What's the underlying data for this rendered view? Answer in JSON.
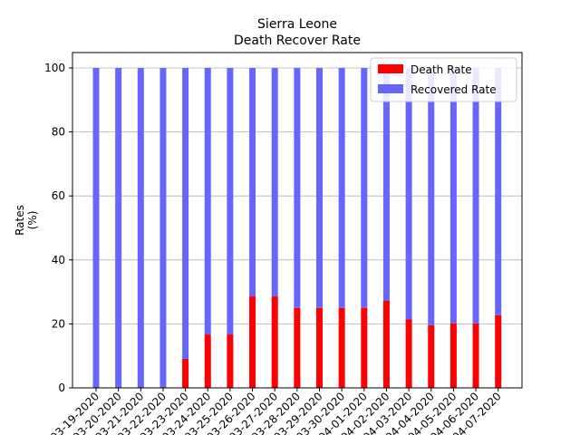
{
  "chart_data": {
    "type": "bar",
    "stacked": true,
    "title": "Sierra Leone",
    "subtitle": "Death Recover Rate",
    "xlabel": "",
    "ylabel": "Rates\n(%)",
    "ylim": [
      0,
      100
    ],
    "yticks": [
      0,
      20,
      40,
      60,
      80,
      100
    ],
    "grid": "y",
    "legend_position": "top-right",
    "categories": [
      "03-19-2020",
      "03-20-2020",
      "03-21-2020",
      "03-22-2020",
      "03-23-2020",
      "03-24-2020",
      "03-25-2020",
      "03-26-2020",
      "03-27-2020",
      "03-28-2020",
      "03-29-2020",
      "03-30-2020",
      "04-01-2020",
      "04-02-2020",
      "04-03-2020",
      "04-04-2020",
      "04-05-2020",
      "04-06-2020",
      "04-07-2020"
    ],
    "series": [
      {
        "name": "Death Rate",
        "color": "#ff0000",
        "values": [
          0,
          0,
          0,
          0,
          9.1,
          16.7,
          16.7,
          28.6,
          28.6,
          25,
          25,
          25,
          25,
          27.3,
          21.4,
          19.6,
          20.2,
          20.2,
          22.7
        ]
      },
      {
        "name": "Recovered Rate",
        "color": "#6666ff",
        "values": [
          100,
          100,
          100,
          100,
          90.9,
          83.3,
          83.3,
          71.4,
          71.4,
          75,
          75,
          75,
          75,
          72.7,
          78.6,
          80.4,
          79.8,
          79.8,
          77.3
        ]
      }
    ]
  }
}
